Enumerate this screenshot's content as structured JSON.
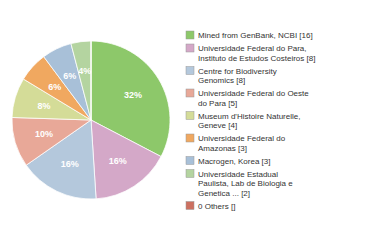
{
  "chart_data": {
    "type": "pie",
    "categories": [
      "Mined from GenBank, NCBI [16]",
      "Universidade Federal do Para,\nInstituto de Estudos Costeiros [8]",
      "Centre for Biodiversity\nGenomics [8]",
      "Universidade Federal do Oeste\ndo Para [5]",
      "Museum d'Histoire Naturelle,\nGeneve [4]",
      "Universidade Federal do\nAmazonas [3]",
      "Macrogen, Korea [3]",
      "Universidade Estadual\nPaulista, Lab de Biologia e\nGenetica ... [2]",
      "0 Others []"
    ],
    "values": [
      32,
      16,
      16,
      10,
      8,
      6,
      6,
      4,
      0.002
    ],
    "value_labels": [
      "32%",
      "16%",
      "16%",
      "10%",
      "8%",
      "6%",
      "6%",
      "4%",
      null
    ],
    "colors": [
      "#8DC86A",
      "#D4A8C8",
      "#B4C8DC",
      "#E8A898",
      "#D4DC98",
      "#F0A860",
      "#A8C0D8",
      "#B4D4A0",
      "#CC7060"
    ],
    "data_labels": true,
    "legend": "right"
  }
}
